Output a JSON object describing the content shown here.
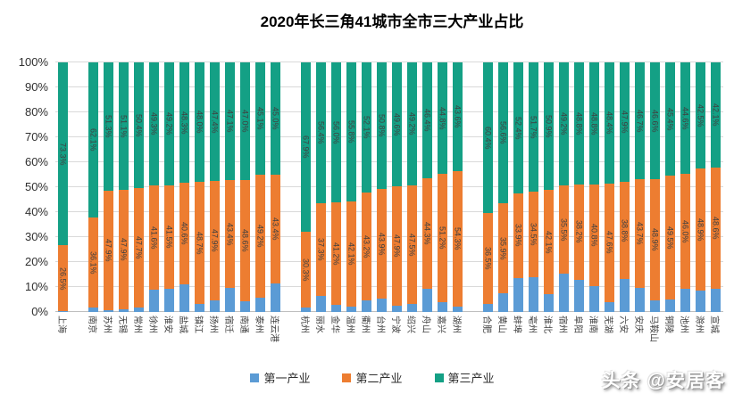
{
  "title": "2020年长三角41城市全市三大产业占比",
  "watermark": "头条 @安居客",
  "chart_data": {
    "type": "bar",
    "stacked": true,
    "title": "2020年长三角41城市全市三大产业占比",
    "y_axis": {
      "min": 0,
      "max": 100,
      "step": 10,
      "tick_suffix": "%"
    },
    "grid": true,
    "legend_position": "bottom",
    "series": [
      "第一产业",
      "第二产业",
      "第三产业"
    ],
    "colors": [
      "#5B9BD5",
      "#ED7D31",
      "#14A085"
    ],
    "value_labels_shown_for": [
      "第二产业",
      "第三产业"
    ],
    "groups": [
      [
        {
          "name": "上海",
          "primary": 0.2,
          "secondary": 26.5,
          "tertiary": 73.3
        }
      ],
      [
        {
          "name": "南京",
          "primary": 1.8,
          "secondary": 36.1,
          "tertiary": 62.1
        },
        {
          "name": "苏州",
          "primary": 0.8,
          "secondary": 47.9,
          "tertiary": 51.3
        },
        {
          "name": "无锡",
          "primary": 1.0,
          "secondary": 47.9,
          "tertiary": 51.1
        },
        {
          "name": "常州",
          "primary": 1.9,
          "secondary": 47.7,
          "tertiary": 50.4
        },
        {
          "name": "徐州",
          "primary": 9.1,
          "secondary": 41.6,
          "tertiary": 49.3
        },
        {
          "name": "淮安",
          "primary": 9.3,
          "secondary": 41.5,
          "tertiary": 49.2
        },
        {
          "name": "盐城",
          "primary": 11.1,
          "secondary": 40.6,
          "tertiary": 48.3
        },
        {
          "name": "镇江",
          "primary": 3.3,
          "secondary": 48.7,
          "tertiary": 48.0
        },
        {
          "name": "扬州",
          "primary": 4.7,
          "secondary": 47.9,
          "tertiary": 47.4
        },
        {
          "name": "宿迁",
          "primary": 9.5,
          "secondary": 43.4,
          "tertiary": 47.1
        },
        {
          "name": "南通",
          "primary": 4.4,
          "secondary": 48.6,
          "tertiary": 47.0
        },
        {
          "name": "泰州",
          "primary": 5.7,
          "secondary": 49.2,
          "tertiary": 45.1
        },
        {
          "name": "连云港",
          "primary": 11.6,
          "secondary": 43.4,
          "tertiary": 45.0
        }
      ],
      [
        {
          "name": "杭州",
          "primary": 1.8,
          "secondary": 30.3,
          "tertiary": 67.9
        },
        {
          "name": "丽水",
          "primary": 6.3,
          "secondary": 37.3,
          "tertiary": 56.4
        },
        {
          "name": "金华",
          "primary": 2.8,
          "secondary": 41.2,
          "tertiary": 56.0
        },
        {
          "name": "温州",
          "primary": 2.1,
          "secondary": 42.1,
          "tertiary": 55.8
        },
        {
          "name": "衢州",
          "primary": 4.7,
          "secondary": 43.2,
          "tertiary": 52.1
        },
        {
          "name": "台州",
          "primary": 5.3,
          "secondary": 43.9,
          "tertiary": 50.8
        },
        {
          "name": "宁波",
          "primary": 2.5,
          "secondary": 47.9,
          "tertiary": 49.6
        },
        {
          "name": "绍兴",
          "primary": 3.3,
          "secondary": 47.5,
          "tertiary": 49.2
        },
        {
          "name": "舟山",
          "primary": 9.3,
          "secondary": 44.3,
          "tertiary": 46.4
        },
        {
          "name": "嘉兴",
          "primary": 4.0,
          "secondary": 51.2,
          "tertiary": 44.8
        },
        {
          "name": "湖州",
          "primary": 2.1,
          "secondary": 54.3,
          "tertiary": 43.6
        }
      ],
      [
        {
          "name": "合肥",
          "primary": 3.1,
          "secondary": 36.5,
          "tertiary": 60.4
        },
        {
          "name": "黄山",
          "primary": 7.5,
          "secondary": 35.9,
          "tertiary": 56.6
        },
        {
          "name": "蚌埠",
          "primary": 13.7,
          "secondary": 33.9,
          "tertiary": 52.4
        },
        {
          "name": "亳州",
          "primary": 13.8,
          "secondary": 34.5,
          "tertiary": 51.7
        },
        {
          "name": "淮北",
          "primary": 7.0,
          "secondary": 42.1,
          "tertiary": 50.9
        },
        {
          "name": "宿州",
          "primary": 15.3,
          "secondary": 35.5,
          "tertiary": 49.2
        },
        {
          "name": "阜阳",
          "primary": 13.0,
          "secondary": 38.2,
          "tertiary": 48.8
        },
        {
          "name": "淮南",
          "primary": 10.4,
          "secondary": 40.8,
          "tertiary": 48.8
        },
        {
          "name": "芜湖",
          "primary": 4.0,
          "secondary": 47.6,
          "tertiary": 48.4
        },
        {
          "name": "六安",
          "primary": 13.3,
          "secondary": 38.8,
          "tertiary": 47.9
        },
        {
          "name": "安庆",
          "primary": 9.6,
          "secondary": 43.7,
          "tertiary": 46.7
        },
        {
          "name": "马鞍山",
          "primary": 4.5,
          "secondary": 48.9,
          "tertiary": 46.6
        },
        {
          "name": "铜陵",
          "primary": 5.1,
          "secondary": 49.5,
          "tertiary": 45.4
        },
        {
          "name": "池州",
          "primary": 9.4,
          "secondary": 46.0,
          "tertiary": 44.6
        },
        {
          "name": "滁州",
          "primary": 8.6,
          "secondary": 48.9,
          "tertiary": 42.5
        },
        {
          "name": "宣城",
          "primary": 9.3,
          "secondary": 48.6,
          "tertiary": 42.1
        }
      ]
    ]
  },
  "legend": {
    "items": [
      {
        "label": "第一产业",
        "color": "#5B9BD5"
      },
      {
        "label": "第二产业",
        "color": "#ED7D31"
      },
      {
        "label": "第三产业",
        "color": "#14A085"
      }
    ]
  }
}
